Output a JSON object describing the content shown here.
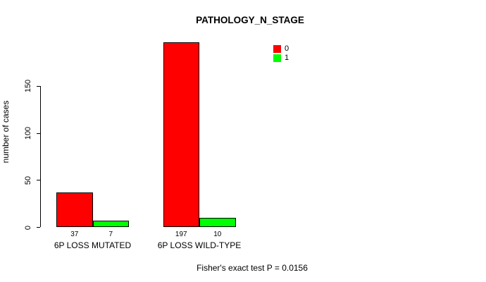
{
  "chart_data": {
    "type": "bar",
    "title": "PATHOLOGY_N_STAGE",
    "ylabel": "number of cases",
    "xlabel": "",
    "ylim": [
      0,
      150
    ],
    "yticks": [
      0,
      50,
      100,
      150
    ],
    "categories": [
      "6P LOSS MUTATED",
      "6P LOSS WILD-TYPE"
    ],
    "series": [
      {
        "name": "0",
        "color": "#ff0000",
        "values": [
          37,
          197
        ]
      },
      {
        "name": "1",
        "color": "#00ff00",
        "values": [
          7,
          10
        ]
      }
    ],
    "bar_value_labels": [
      [
        37,
        7
      ],
      [
        197,
        10
      ]
    ],
    "legend_position": "top-right",
    "grid": false,
    "caption": "Fisher's exact test P = 0.0156"
  },
  "colors": {
    "background": "#ffffff",
    "axis": "#000000",
    "bar_border": "#000000",
    "text": "#000000",
    "series_0": "#ff0000",
    "series_1": "#00ff00"
  }
}
